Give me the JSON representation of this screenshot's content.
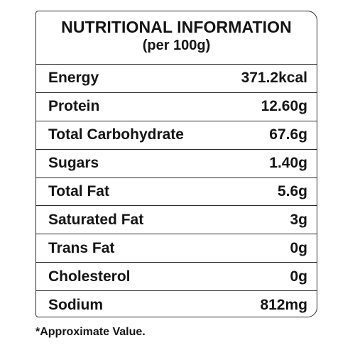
{
  "header": {
    "title": "NUTRITIONAL INFORMATION",
    "subtitle": "(per 100g)"
  },
  "rows": [
    {
      "label": "Energy",
      "value": "371.2kcal"
    },
    {
      "label": "Protein",
      "value": "12.60g"
    },
    {
      "label": "Total Carbohydrate",
      "value": "67.6g"
    },
    {
      "label": "Sugars",
      "value": "1.40g"
    },
    {
      "label": "Total Fat",
      "value": "5.6g"
    },
    {
      "label": "Saturated Fat",
      "value": "3g"
    },
    {
      "label": "Trans Fat",
      "value": "0g"
    },
    {
      "label": "Cholesterol",
      "value": "0g"
    },
    {
      "label": "Sodium",
      "value": "812mg"
    }
  ],
  "footnote": "*Approximate Value."
}
